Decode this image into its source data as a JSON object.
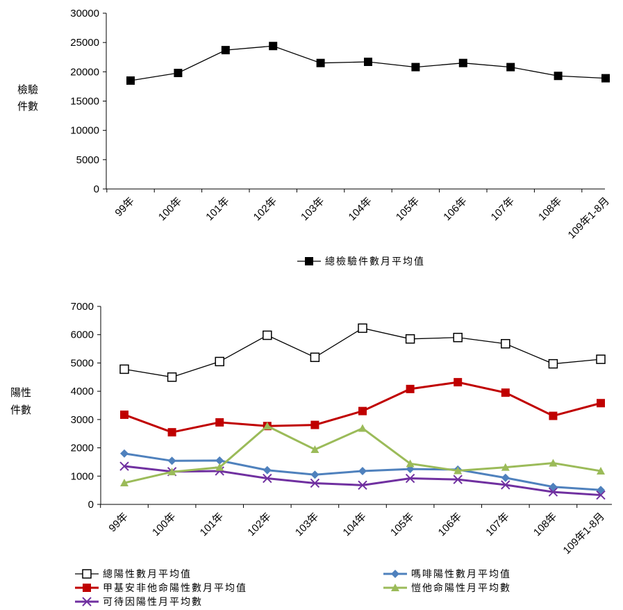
{
  "chart_data": [
    {
      "type": "line",
      "categories": [
        "99年",
        "100年",
        "101年",
        "102年",
        "103年",
        "104年",
        "105年",
        "106年",
        "107年",
        "108年",
        "109年1-8月"
      ],
      "yticks": [
        "30000",
        "25000",
        "20000",
        "15000",
        "10000",
        "5000",
        "0"
      ],
      "ylim": [
        0,
        30000
      ],
      "ylabel": [
        "檢驗",
        "件數"
      ],
      "series": [
        {
          "name": "總檢驗件數月平均值",
          "color": "#000000",
          "marker": "square-filled",
          "values": [
            18500,
            19800,
            23700,
            24400,
            21500,
            21700,
            20800,
            21500,
            20800,
            19300,
            18900
          ]
        }
      ],
      "legend_position": "bottom"
    },
    {
      "type": "line",
      "categories": [
        "99年",
        "100年",
        "101年",
        "102年",
        "103年",
        "104年",
        "105年",
        "106年",
        "107年",
        "108年",
        "109年1-8月"
      ],
      "yticks": [
        "7000",
        "6000",
        "5000",
        "4000",
        "3000",
        "2000",
        "1000",
        "0"
      ],
      "ylim": [
        0,
        7000
      ],
      "ylabel": [
        "陽性",
        "件數"
      ],
      "series": [
        {
          "name": "總陽性數月平均值",
          "color": "#000000",
          "marker": "square-open",
          "values": [
            4780,
            4500,
            5050,
            5980,
            5200,
            6230,
            5850,
            5900,
            5680,
            4970,
            5130
          ]
        },
        {
          "name": "甲基安非他命陽性數月平均值",
          "color": "#c00000",
          "marker": "square-filled",
          "values": [
            3170,
            2550,
            2900,
            2770,
            2810,
            3300,
            4080,
            4320,
            3950,
            3130,
            3580
          ]
        },
        {
          "name": "可待因陽性月平均數",
          "color": "#7030a0",
          "marker": "x",
          "values": [
            1350,
            1160,
            1180,
            920,
            750,
            680,
            920,
            880,
            690,
            440,
            330
          ]
        },
        {
          "name": "嗎啡陽性數月平均值",
          "color": "#4f81bd",
          "marker": "diamond",
          "values": [
            1800,
            1540,
            1550,
            1210,
            1050,
            1180,
            1250,
            1230,
            940,
            620,
            510
          ]
        },
        {
          "name": "愷他命陽性月平均數",
          "color": "#9bbb59",
          "marker": "triangle",
          "values": [
            760,
            1150,
            1310,
            2770,
            1940,
            2690,
            1440,
            1190,
            1310,
            1460,
            1180
          ]
        }
      ],
      "legend_position": "bottom"
    }
  ]
}
